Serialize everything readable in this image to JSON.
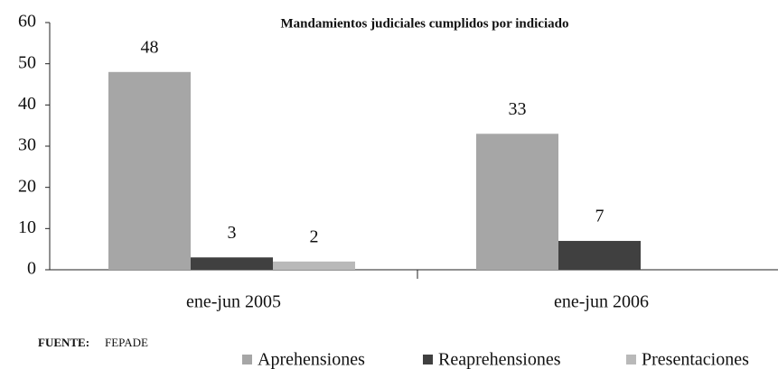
{
  "chart_data": {
    "type": "bar",
    "title": "Mandamientos judiciales cumplidos por indiciado",
    "categories": [
      "ene-jun 2005",
      "ene-jun 2006"
    ],
    "series": [
      {
        "name": "Aprehensiones",
        "color": "#a6a6a6",
        "values": [
          48,
          33
        ]
      },
      {
        "name": "Reaprehensiones",
        "color": "#404040",
        "values": [
          3,
          7
        ]
      },
      {
        "name": "Presentaciones",
        "color": "#b9b9b9",
        "values": [
          2,
          null
        ]
      }
    ],
    "ylim": [
      0,
      60
    ],
    "yticks": [
      0,
      10,
      20,
      30,
      40,
      50,
      60
    ],
    "grid": false,
    "legend": "bottom",
    "source_label": "FUENTE:",
    "source": "FEPADE"
  }
}
